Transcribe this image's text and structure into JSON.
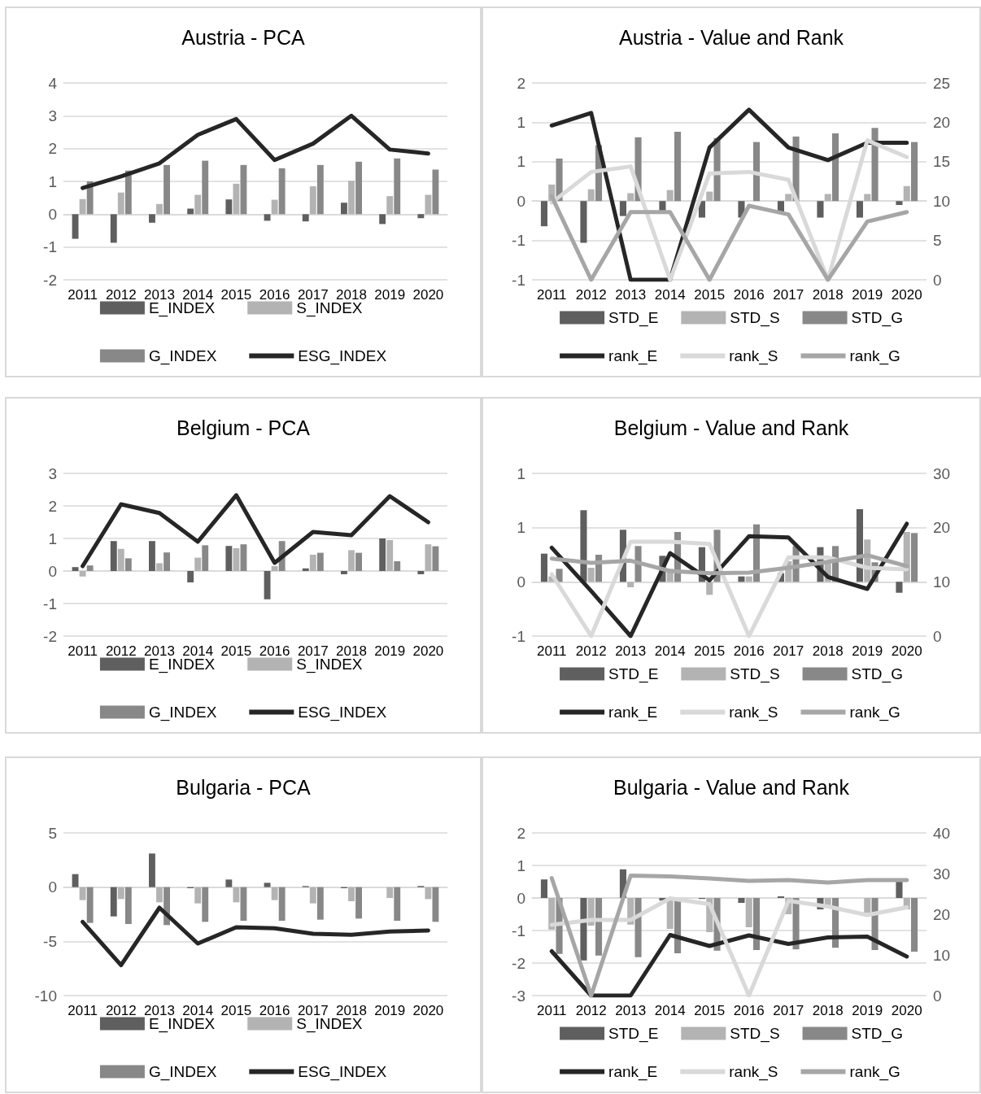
{
  "chart_data": [
    {
      "type": "bar",
      "title": "Austria - PCA",
      "categories": [
        "2011",
        "2012",
        "2013",
        "2014",
        "2015",
        "2016",
        "2017",
        "2018",
        "2019",
        "2020"
      ],
      "ylim": [
        -2,
        4
      ],
      "yticks": [
        -2,
        -1,
        0,
        1,
        2,
        3,
        4
      ],
      "grid": "y",
      "legend": "bottom",
      "marker": "none",
      "series": [
        {
          "name": "E_INDEX",
          "color": "#5f5f5f",
          "values": [
            -0.75,
            -0.87,
            -0.26,
            0.17,
            0.45,
            -0.2,
            -0.22,
            0.35,
            -0.3,
            -0.12
          ]
        },
        {
          "name": "S_INDEX",
          "color": "#b3b3b3",
          "values": [
            0.46,
            0.66,
            0.31,
            0.59,
            0.93,
            0.44,
            0.85,
            1.02,
            0.55,
            0.59
          ]
        },
        {
          "name": "G_INDEX",
          "color": "#888888",
          "values": [
            1.0,
            1.33,
            1.5,
            1.63,
            1.5,
            1.4,
            1.5,
            1.6,
            1.7,
            1.36
          ]
        },
        {
          "name": "ESG_INDEX",
          "type": "line",
          "color": "#262626",
          "values": [
            0.8,
            1.15,
            1.55,
            2.42,
            2.9,
            1.65,
            2.15,
            3.0,
            1.97,
            1.85
          ]
        }
      ]
    },
    {
      "type": "bar",
      "title": "Austria - Value and Rank",
      "categories": [
        "2011",
        "2012",
        "2013",
        "2014",
        "2015",
        "2016",
        "2017",
        "2018",
        "2019",
        "2020"
      ],
      "ylim": [
        -1,
        1.5
      ],
      "yticks": [
        {
          "value": -1,
          "label": "-1"
        },
        {
          "value": -0.5,
          "label": "-1"
        },
        {
          "value": 0,
          "label": "0"
        },
        {
          "value": 0.5,
          "label": "1"
        },
        {
          "value": 1,
          "label": "1"
        },
        {
          "value": 1.5,
          "label": "2"
        }
      ],
      "y2lim": [
        0,
        25
      ],
      "y2ticks": [
        0,
        5,
        10,
        15,
        20,
        25
      ],
      "grid": "y",
      "legend": "bottom",
      "marker": "none",
      "series": [
        {
          "name": "STD_E",
          "color": "#5f5f5f",
          "values": [
            -0.32,
            -0.53,
            -0.19,
            -0.13,
            -0.21,
            -0.21,
            -0.15,
            -0.21,
            -0.21,
            -0.05
          ]
        },
        {
          "name": "STD_S",
          "color": "#b3b3b3",
          "values": [
            0.21,
            0.15,
            0.1,
            0.14,
            0.12,
            null,
            0.09,
            0.09,
            0.09,
            0.19
          ]
        },
        {
          "name": "STD_G",
          "color": "#888888",
          "values": [
            0.54,
            0.71,
            0.81,
            0.88,
            0.8,
            0.75,
            0.82,
            0.86,
            0.93,
            0.75
          ]
        },
        {
          "name": "rank_E",
          "type": "line",
          "axis": "y2",
          "color": "#262626",
          "values": [
            19.6,
            21.2,
            0,
            0,
            16.8,
            21.6,
            16.8,
            15.2,
            17.4,
            17.4
          ]
        },
        {
          "name": "rank_S",
          "type": "line",
          "axis": "y2",
          "color": "#d9d9d9",
          "values": [
            9.8,
            13.7,
            14.4,
            0,
            13.5,
            13.7,
            12.7,
            0,
            17.7,
            15.6
          ]
        },
        {
          "name": "rank_G",
          "type": "line",
          "axis": "y2",
          "color": "#a6a6a6",
          "values": [
            10.6,
            0,
            8.6,
            8.6,
            0,
            9.4,
            8.3,
            0,
            7.4,
            8.6
          ]
        }
      ]
    },
    {
      "type": "bar",
      "title": "Belgium - PCA",
      "categories": [
        "2011",
        "2012",
        "2013",
        "2014",
        "2015",
        "2016",
        "2017",
        "2018",
        "2019",
        "2020"
      ],
      "ylim": [
        -2,
        3
      ],
      "yticks": [
        -2,
        -1,
        0,
        1,
        2,
        3
      ],
      "grid": "y",
      "legend": "bottom",
      "marker": "none",
      "series": [
        {
          "name": "E_INDEX",
          "color": "#5f5f5f",
          "values": [
            0.12,
            0.92,
            0.92,
            -0.35,
            0.77,
            -0.87,
            0.08,
            -0.1,
            1.0,
            -0.1
          ]
        },
        {
          "name": "S_INDEX",
          "color": "#b3b3b3",
          "values": [
            -0.17,
            0.68,
            0.24,
            0.41,
            0.7,
            0.15,
            0.5,
            0.64,
            0.95,
            0.82
          ]
        },
        {
          "name": "G_INDEX",
          "color": "#888888",
          "values": [
            0.17,
            0.39,
            0.57,
            0.79,
            0.82,
            0.92,
            0.56,
            0.56,
            0.3,
            0.76
          ]
        },
        {
          "name": "ESG_INDEX",
          "type": "line",
          "color": "#262626",
          "values": [
            0.15,
            2.05,
            1.78,
            0.9,
            2.33,
            0.25,
            1.2,
            1.1,
            2.3,
            1.5
          ]
        }
      ]
    },
    {
      "type": "bar",
      "title": "Belgium - Value and Rank",
      "categories": [
        "2011",
        "2012",
        "2013",
        "2014",
        "2015",
        "2016",
        "2017",
        "2018",
        "2019",
        "2020"
      ],
      "ylim": [
        -0.5,
        1
      ],
      "yticks": [
        {
          "value": -0.5,
          "label": "-1"
        },
        {
          "value": 0,
          "label": "0"
        },
        {
          "value": 0.5,
          "label": "1"
        },
        {
          "value": 1,
          "label": "1"
        }
      ],
      "y2lim": [
        0,
        30
      ],
      "y2ticks": [
        0,
        10,
        20,
        30
      ],
      "grid": "y",
      "legend": "bottom",
      "marker": "none",
      "series": [
        {
          "name": "STD_E",
          "color": "#5f5f5f",
          "values": [
            0.26,
            0.66,
            0.48,
            0.24,
            0.32,
            0.05,
            0.08,
            0.32,
            0.67,
            -0.1
          ]
        },
        {
          "name": "STD_S",
          "color": "#b3b3b3",
          "values": [
            0.05,
            0.13,
            -0.05,
            0.12,
            -0.12,
            0.05,
            0.19,
            0.19,
            0.39,
            0.46
          ]
        },
        {
          "name": "STD_G",
          "color": "#888888",
          "values": [
            0.12,
            0.25,
            0.33,
            0.46,
            0.48,
            0.53,
            0.33,
            0.33,
            0.18,
            0.45
          ]
        },
        {
          "name": "rank_E",
          "type": "line",
          "axis": "y2",
          "color": "#262626",
          "values": [
            16.3,
            8.3,
            0,
            15.3,
            10.3,
            18.4,
            18.2,
            10.9,
            8.7,
            20.7
          ]
        },
        {
          "name": "rank_S",
          "type": "line",
          "axis": "y2",
          "color": "#d9d9d9",
          "values": [
            11.4,
            0,
            17.4,
            17.4,
            17,
            0,
            14.5,
            14.5,
            12.6,
            12.3
          ]
        },
        {
          "name": "rank_G",
          "type": "line",
          "axis": "y2",
          "color": "#a6a6a6",
          "values": [
            14.3,
            13.5,
            13.9,
            12,
            11.6,
            11.7,
            12.6,
            13.7,
            14.9,
            12.9
          ]
        }
      ]
    },
    {
      "type": "bar",
      "title": "Bulgaria - PCA",
      "categories": [
        "2011",
        "2012",
        "2013",
        "2014",
        "2015",
        "2016",
        "2017",
        "2018",
        "2019",
        "2020"
      ],
      "ylim": [
        -10,
        5
      ],
      "yticks": [
        -10,
        -5,
        0,
        5
      ],
      "grid": "y",
      "legend": "bottom",
      "marker": "none",
      "series": [
        {
          "name": "E_INDEX",
          "color": "#5f5f5f",
          "values": [
            1.2,
            -2.7,
            3.1,
            -0.1,
            0.7,
            0.4,
            0.1,
            -0.1,
            0,
            0.1
          ]
        },
        {
          "name": "S_INDEX",
          "color": "#b3b3b3",
          "values": [
            -1.2,
            -1.1,
            -1.4,
            -1.5,
            -1.4,
            -1.2,
            -1.5,
            -1.3,
            -1.0,
            -1.1
          ]
        },
        {
          "name": "G_INDEX",
          "color": "#888888",
          "values": [
            -3.3,
            -3.4,
            -3.5,
            -3.2,
            -3.1,
            -3.1,
            -3.0,
            -2.9,
            -3.1,
            -3.2
          ]
        },
        {
          "name": "ESG_INDEX",
          "type": "line",
          "color": "#262626",
          "values": [
            -3.2,
            -7.2,
            -1.9,
            -5.2,
            -3.7,
            -3.8,
            -4.3,
            -4.4,
            -4.1,
            -4.0
          ]
        }
      ]
    },
    {
      "type": "bar",
      "title": "Bulgaria - Value and Rank",
      "categories": [
        "2011",
        "2012",
        "2013",
        "2014",
        "2015",
        "2016",
        "2017",
        "2018",
        "2019",
        "2020"
      ],
      "ylim": [
        -3,
        2
      ],
      "yticks": [
        -3,
        -2,
        -1,
        0,
        1,
        2
      ],
      "y2lim": [
        0,
        40
      ],
      "y2ticks": [
        0,
        10,
        20,
        30,
        40
      ],
      "grid": "y",
      "legend": "bottom",
      "marker": "none",
      "series": [
        {
          "name": "STD_E",
          "color": "#5f5f5f",
          "values": [
            0.57,
            -1.92,
            0.88,
            -0.08,
            -0.03,
            -0.15,
            0.05,
            -0.35,
            null,
            0.5
          ]
        },
        {
          "name": "STD_S",
          "color": "#b3b3b3",
          "values": [
            -0.97,
            -0.85,
            -0.82,
            -0.95,
            -1.05,
            -0.9,
            -0.5,
            -0.3,
            -0.45,
            -0.35
          ]
        },
        {
          "name": "STD_G",
          "color": "#888888",
          "values": [
            -1.72,
            -1.77,
            -1.82,
            -1.7,
            -1.62,
            -1.6,
            -1.58,
            -1.53,
            -1.6,
            -1.65
          ]
        },
        {
          "name": "rank_E",
          "type": "line",
          "axis": "y2",
          "color": "#262626",
          "values": [
            10.9,
            0,
            0,
            14.9,
            12.2,
            14.8,
            12.7,
            14.3,
            14.5,
            9.6
          ]
        },
        {
          "name": "rank_S",
          "type": "line",
          "axis": "y2",
          "color": "#d9d9d9",
          "values": [
            17.4,
            18.6,
            18.6,
            23.9,
            22.5,
            0,
            23.3,
            21.9,
            19.8,
            21.7
          ]
        },
        {
          "name": "rank_G",
          "type": "line",
          "axis": "y2",
          "color": "#a6a6a6",
          "values": [
            28.9,
            0,
            29.5,
            29.3,
            28.8,
            28.2,
            28.4,
            27.8,
            28.4,
            28.4
          ]
        }
      ]
    }
  ]
}
